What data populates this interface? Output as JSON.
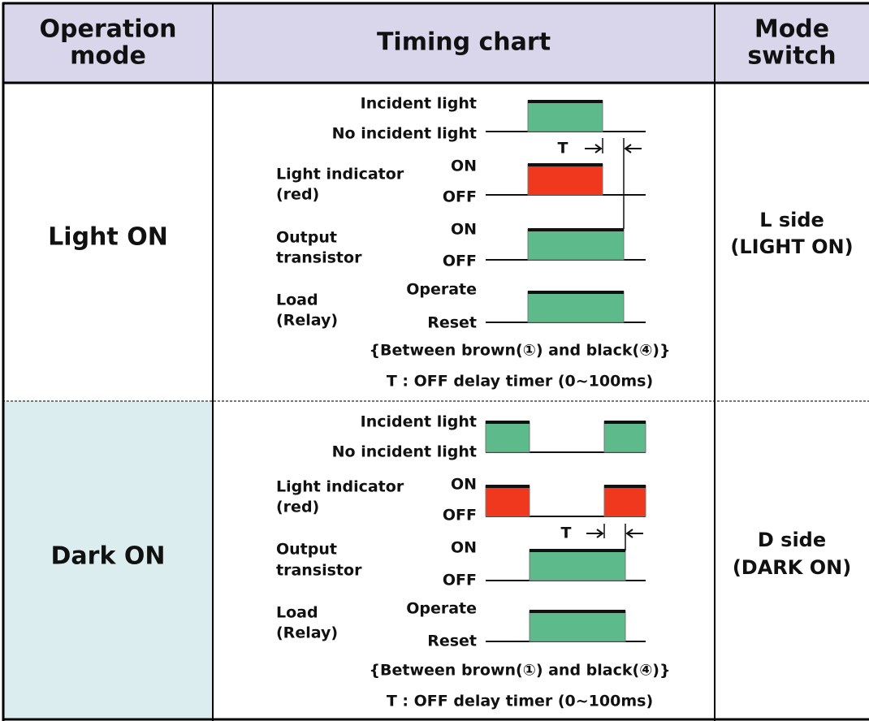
{
  "table": {
    "headers": [
      [
        "Operation",
        "mode"
      ],
      [
        "Timing chart"
      ],
      [
        "Mode",
        "switch"
      ]
    ],
    "rows": [
      {
        "mode": "Light ON",
        "switch": [
          "L side",
          "(LIGHT ON)"
        ],
        "timer_label": "T",
        "signals": [
          {
            "name": [],
            "high": "Incident light",
            "low": "No incident light"
          },
          {
            "name": [
              "Light indicator",
              "(red)"
            ],
            "high": "ON",
            "low": "OFF"
          },
          {
            "name": [
              "Output",
              "transistor"
            ],
            "high": "ON",
            "low": "OFF"
          },
          {
            "name": [
              "Load",
              "(Relay)"
            ],
            "high": "Operate",
            "low": "Reset"
          }
        ],
        "notes": [
          "{Between brown(①) and black(④)}",
          "T : OFF delay timer (0~100ms)"
        ]
      },
      {
        "mode": "Dark ON",
        "switch": [
          "D side",
          "(DARK ON)"
        ],
        "timer_label": "T",
        "signals": [
          {
            "name": [],
            "high": "Incident light",
            "low": "No incident light"
          },
          {
            "name": [
              "Light indicator",
              "(red)"
            ],
            "high": "ON",
            "low": "OFF"
          },
          {
            "name": [
              "Output",
              "transistor"
            ],
            "high": "ON",
            "low": "OFF"
          },
          {
            "name": [
              "Load",
              "(Relay)"
            ],
            "high": "Operate",
            "low": "Reset"
          }
        ],
        "notes": [
          "{Between brown(①) and black(④)}",
          "T : OFF delay timer (0~100ms)"
        ]
      }
    ]
  }
}
